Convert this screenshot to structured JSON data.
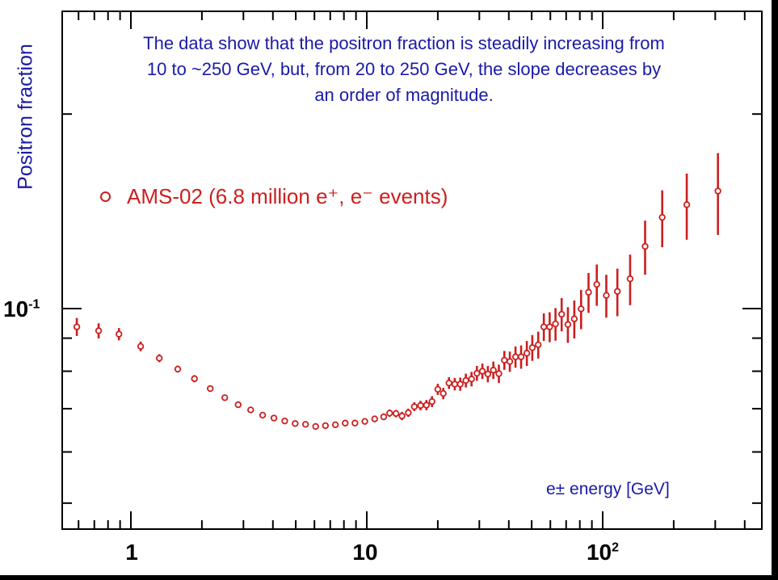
{
  "chart_data": {
    "type": "scatter",
    "annotation": "The data show that the positron fraction is steadily increasing from 10 to ~250 GeV, but, from 20 to 250 GeV, the slope decreases by an order of magnitude.",
    "annotation_lines": [
      "The data show that the positron fraction is steadily increasing from",
      "10 to ~250 GeV, but, from 20 to 250 GeV, the slope decreases by",
      "an order of magnitude."
    ],
    "xlabel": "e± energy [GeV]",
    "ylabel": "Positron fraction",
    "x_scale": "log",
    "y_scale": "log",
    "xlim": [
      0.53,
      600
    ],
    "ylim": [
      0.04,
      0.3
    ],
    "x_ticks": [
      {
        "value": 1,
        "label": "1",
        "sup": ""
      },
      {
        "value": 10,
        "label": "10",
        "sup": ""
      },
      {
        "value": 100,
        "label": "10",
        "sup": "2"
      }
    ],
    "y_ticks": [
      {
        "value": 0.1,
        "label": "10",
        "sup": "-1"
      }
    ],
    "legend": {
      "label": "AMS-02 (6.8 million e⁺, e⁻ events)",
      "position": "top-left"
    },
    "colors": {
      "series": "#cc1f1f",
      "text": "#1a1aa8"
    },
    "series": [
      {
        "name": "AMS-02 (6.8 million e⁺, e⁻ events)",
        "x": [
          0.59,
          0.73,
          0.89,
          1.1,
          1.32,
          1.58,
          1.86,
          2.17,
          2.5,
          2.85,
          3.22,
          3.62,
          4.04,
          4.49,
          4.97,
          5.5,
          6.07,
          6.68,
          7.36,
          8.1,
          8.91,
          9.81,
          10.8,
          11.8,
          12.5,
          13.3,
          14.1,
          15.0,
          15.9,
          16.9,
          17.9,
          18.9,
          20.0,
          21.1,
          22.3,
          23.6,
          24.9,
          26.3,
          27.8,
          29.3,
          30.9,
          32.6,
          34.4,
          36.3,
          38.3,
          40.4,
          42.7,
          45.1,
          47.7,
          50.3,
          53.3,
          56.3,
          59.6,
          63.1,
          67.0,
          71.2,
          75.8,
          81.0,
          87.1,
          94.4,
          103.6,
          115.4,
          130.7,
          151.3,
          178.8,
          227.2,
          308.0
        ],
        "y": [
          0.0937,
          0.0924,
          0.0913,
          0.0874,
          0.0838,
          0.0806,
          0.0779,
          0.0752,
          0.0728,
          0.071,
          0.0697,
          0.0684,
          0.0677,
          0.067,
          0.0664,
          0.0662,
          0.0657,
          0.0659,
          0.0661,
          0.0665,
          0.0665,
          0.0669,
          0.0675,
          0.068,
          0.0689,
          0.0688,
          0.0682,
          0.069,
          0.0705,
          0.0708,
          0.0709,
          0.0718,
          0.075,
          0.0739,
          0.0767,
          0.0764,
          0.0764,
          0.0774,
          0.0778,
          0.0794,
          0.08,
          0.0792,
          0.0803,
          0.0793,
          0.0832,
          0.0828,
          0.0842,
          0.0842,
          0.0853,
          0.087,
          0.0879,
          0.0937,
          0.0937,
          0.0947,
          0.098,
          0.0945,
          0.0964,
          0.0999,
          0.106,
          0.109,
          0.1048,
          0.1063,
          0.1112,
          0.1248,
          0.1384,
          0.1448,
          0.152
        ],
        "yerr": [
          0.003,
          0.0025,
          0.002,
          0.0015,
          0.0012,
          0.001,
          0.001,
          0.0008,
          0.0008,
          0.0007,
          0.0007,
          0.0007,
          0.0007,
          0.0007,
          0.0006,
          0.0006,
          0.0006,
          0.0006,
          0.0006,
          0.0006,
          0.0007,
          0.0007,
          0.0008,
          0.0008,
          0.0009,
          0.0009,
          0.001,
          0.001,
          0.0011,
          0.0012,
          0.0013,
          0.0014,
          0.0015,
          0.0015,
          0.0016,
          0.0017,
          0.0018,
          0.0019,
          0.002,
          0.0021,
          0.0022,
          0.0023,
          0.0025,
          0.0026,
          0.0028,
          0.003,
          0.0032,
          0.0035,
          0.0038,
          0.004,
          0.0042,
          0.0046,
          0.005,
          0.0055,
          0.0058,
          0.006,
          0.0065,
          0.007,
          0.0075,
          0.008,
          0.008,
          0.009,
          0.01,
          0.012,
          0.014,
          0.017,
          0.022
        ]
      }
    ]
  }
}
